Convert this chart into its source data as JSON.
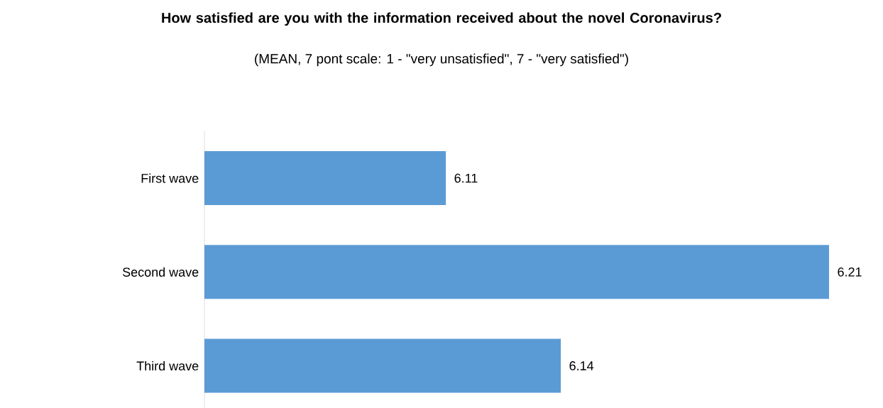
{
  "chart_data": {
    "type": "bar",
    "orientation": "horizontal",
    "title": "How satisfied are you with the information received about the novel Coronavirus?",
    "subtitle": "(MEAN, 7 pont scale: 1 - \"very unsatisfied\", 7 - \"very satisfied\")",
    "categories": [
      "First wave",
      "Second wave",
      "Third wave"
    ],
    "values": [
      6.11,
      6.21,
      6.14
    ],
    "color": "#5b9bd5",
    "xlim": [
      6.047,
      6.21
    ],
    "tick_labels": "y",
    "data_labels": true
  }
}
